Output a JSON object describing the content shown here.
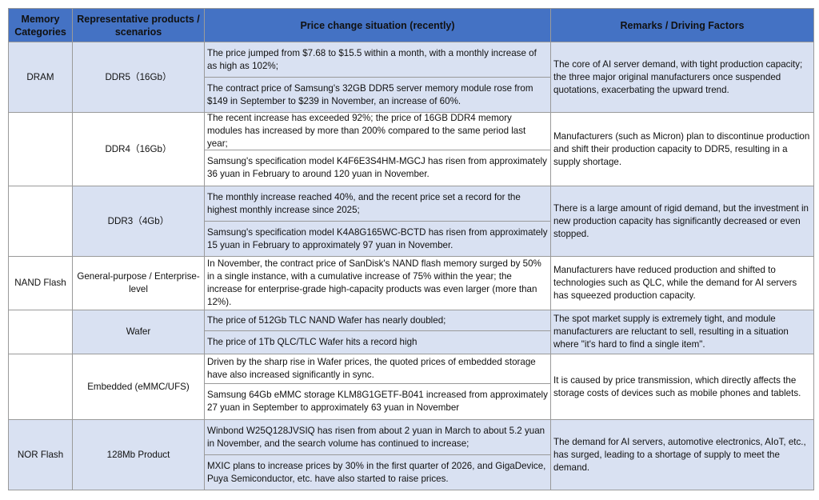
{
  "headers": [
    "Memory Categories",
    "Representative products / scenarios",
    "Price change situation (recently)",
    "Remarks / Driving Factors"
  ],
  "rows": [
    {
      "category": "DRAM",
      "product": "DDR5（16Gb）",
      "prices": [
        "The price jumped from $7.68 to $15.5 within a month, with a monthly increase of as high as 102%;",
        "The contract price of Samsung's 32GB DDR5 server memory module rose from $149 in September to $239 in November, an increase of 60%."
      ],
      "remark": "The core of AI server demand, with tight production capacity; the three major original manufacturers once suspended quotations, exacerbating the upward trend."
    },
    {
      "category": "",
      "product": "DDR4（16Gb）",
      "prices": [
        "The recent increase has exceeded 92%; the price of 16GB DDR4 memory modules has increased by more than 200% compared to the same period last year;",
        "Samsung's specification model K4F6E3S4HM-MGCJ has risen from approximately 36 yuan in February to around 120 yuan in November."
      ],
      "remark": "Manufacturers (such as Micron) plan to discontinue production and shift their production capacity to DDR5, resulting in a supply shortage."
    },
    {
      "category": "",
      "product": "DDR3（4Gb）",
      "prices": [
        "The monthly increase reached 40%, and the recent price set a record for the highest monthly increase since 2025;",
        "Samsung's specification model K4A8G165WC-BCTD has risen from approximately 15 yuan in February to approximately 97 yuan in November."
      ],
      "remark": "There is a large amount of rigid demand, but the investment in new production capacity has significantly decreased or even stopped."
    },
    {
      "category": "NAND Flash",
      "product": "General-purpose / Enterprise-level",
      "prices": [
        "In November, the contract price of SanDisk's NAND flash memory surged by 50% in a single instance, with a cumulative increase of 75% within the year; the increase for enterprise-grade high-capacity products was even larger (more than 12%)."
      ],
      "remark": "Manufacturers have reduced production and shifted to technologies such as QLC, while the demand for AI servers has squeezed production capacity."
    },
    {
      "category": "",
      "product": "Wafer",
      "prices": [
        "The price of 512Gb TLC NAND Wafer has nearly doubled;",
        "The price of 1Tb QLC/TLC Wafer hits a record high"
      ],
      "remark": "The spot market supply is extremely tight, and module manufacturers are reluctant to sell, resulting in a situation where \"it's hard to find a single item\"."
    },
    {
      "category": "",
      "product": "Embedded (eMMC/UFS)",
      "prices": [
        "Driven by the sharp rise in Wafer prices, the quoted prices of embedded storage have also increased significantly in sync.",
        "Samsung 64Gb eMMC storage KLM8G1GETF-B041 increased from approximately 27 yuan in September to approximately 63 yuan in November"
      ],
      "remark": "It is caused by price transmission, which directly affects the storage costs of devices such as mobile phones and tablets."
    },
    {
      "category": "NOR Flash",
      "product": "128Mb Product",
      "prices": [
        "Winbond W25Q128JVSIQ has risen from about 2 yuan in March to about 5.2 yuan in November, and the search volume has continued to increase;",
        "MXIC plans to increase prices by 30% in the first quarter of 2026, and GigaDevice, Puya Semiconductor, etc. have also started to raise prices."
      ],
      "remark": "The demand for AI servers, automotive electronics, AIoT, etc., has surged, leading to a shortage of supply to meet the demand."
    }
  ]
}
